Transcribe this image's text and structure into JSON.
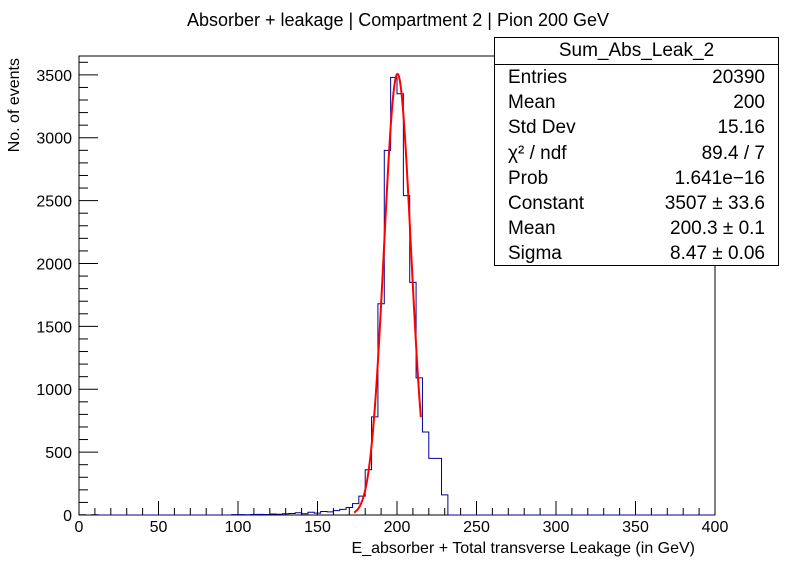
{
  "chart_data": {
    "type": "histogram",
    "title": "Absorber + leakage | Compartment 2 | Pion 200 GeV",
    "xlabel": "E_absorber + Total transverse Leakage (in GeV)",
    "ylabel": "No. of events",
    "xlim": [
      0,
      400
    ],
    "ylim": [
      0,
      3650
    ],
    "x_ticks": [
      0,
      50,
      100,
      150,
      200,
      250,
      300,
      350,
      400
    ],
    "y_ticks": [
      0,
      500,
      1000,
      1500,
      2000,
      2500,
      3000,
      3500
    ],
    "bin_width": 4,
    "bins": [
      {
        "x": 0,
        "y": 2
      },
      {
        "x": 4,
        "y": 0
      },
      {
        "x": 8,
        "y": 2
      },
      {
        "x": 96,
        "y": 3
      },
      {
        "x": 100,
        "y": 3
      },
      {
        "x": 104,
        "y": 2
      },
      {
        "x": 108,
        "y": 4
      },
      {
        "x": 112,
        "y": 5
      },
      {
        "x": 116,
        "y": 4
      },
      {
        "x": 120,
        "y": 8
      },
      {
        "x": 124,
        "y": 6
      },
      {
        "x": 128,
        "y": 10
      },
      {
        "x": 132,
        "y": 12
      },
      {
        "x": 136,
        "y": 18
      },
      {
        "x": 140,
        "y": 10
      },
      {
        "x": 144,
        "y": 22
      },
      {
        "x": 148,
        "y": 15
      },
      {
        "x": 152,
        "y": 28
      },
      {
        "x": 156,
        "y": 25
      },
      {
        "x": 160,
        "y": 35
      },
      {
        "x": 164,
        "y": 45
      },
      {
        "x": 168,
        "y": 60
      },
      {
        "x": 172,
        "y": 90
      },
      {
        "x": 176,
        "y": 150
      },
      {
        "x": 180,
        "y": 360
      },
      {
        "x": 184,
        "y": 780
      },
      {
        "x": 188,
        "y": 1680
      },
      {
        "x": 192,
        "y": 2900
      },
      {
        "x": 196,
        "y": 3480
      },
      {
        "x": 200,
        "y": 3350
      },
      {
        "x": 204,
        "y": 2540
      },
      {
        "x": 208,
        "y": 1850
      },
      {
        "x": 212,
        "y": 1090
      },
      {
        "x": 216,
        "y": 660
      },
      {
        "x": 220,
        "y": 450
      },
      {
        "x": 224,
        "y": 450
      },
      {
        "x": 228,
        "y": 160
      }
    ],
    "fit": {
      "type": "gaus",
      "constant": 3507,
      "mean": 200.3,
      "sigma": 8.47,
      "x_range": [
        173,
        215
      ]
    },
    "colors": {
      "histogram": "#000099",
      "fit": "#ff0000"
    }
  },
  "stats_box": {
    "name": "Sum_Abs_Leak_2",
    "rows": [
      {
        "label": "Entries",
        "value": "20390"
      },
      {
        "label": "Mean",
        "value": "200"
      },
      {
        "label": "Std Dev",
        "value": "15.16"
      },
      {
        "label": "χ² / ndf",
        "value": "89.4 / 7"
      },
      {
        "label": "Prob",
        "value": "1.641e−16"
      },
      {
        "label": "Constant",
        "value": "3507 ± 33.6"
      },
      {
        "label": "Mean",
        "value": "200.3 ± 0.1"
      },
      {
        "label": "Sigma",
        "value": "8.47 ± 0.06"
      }
    ]
  }
}
